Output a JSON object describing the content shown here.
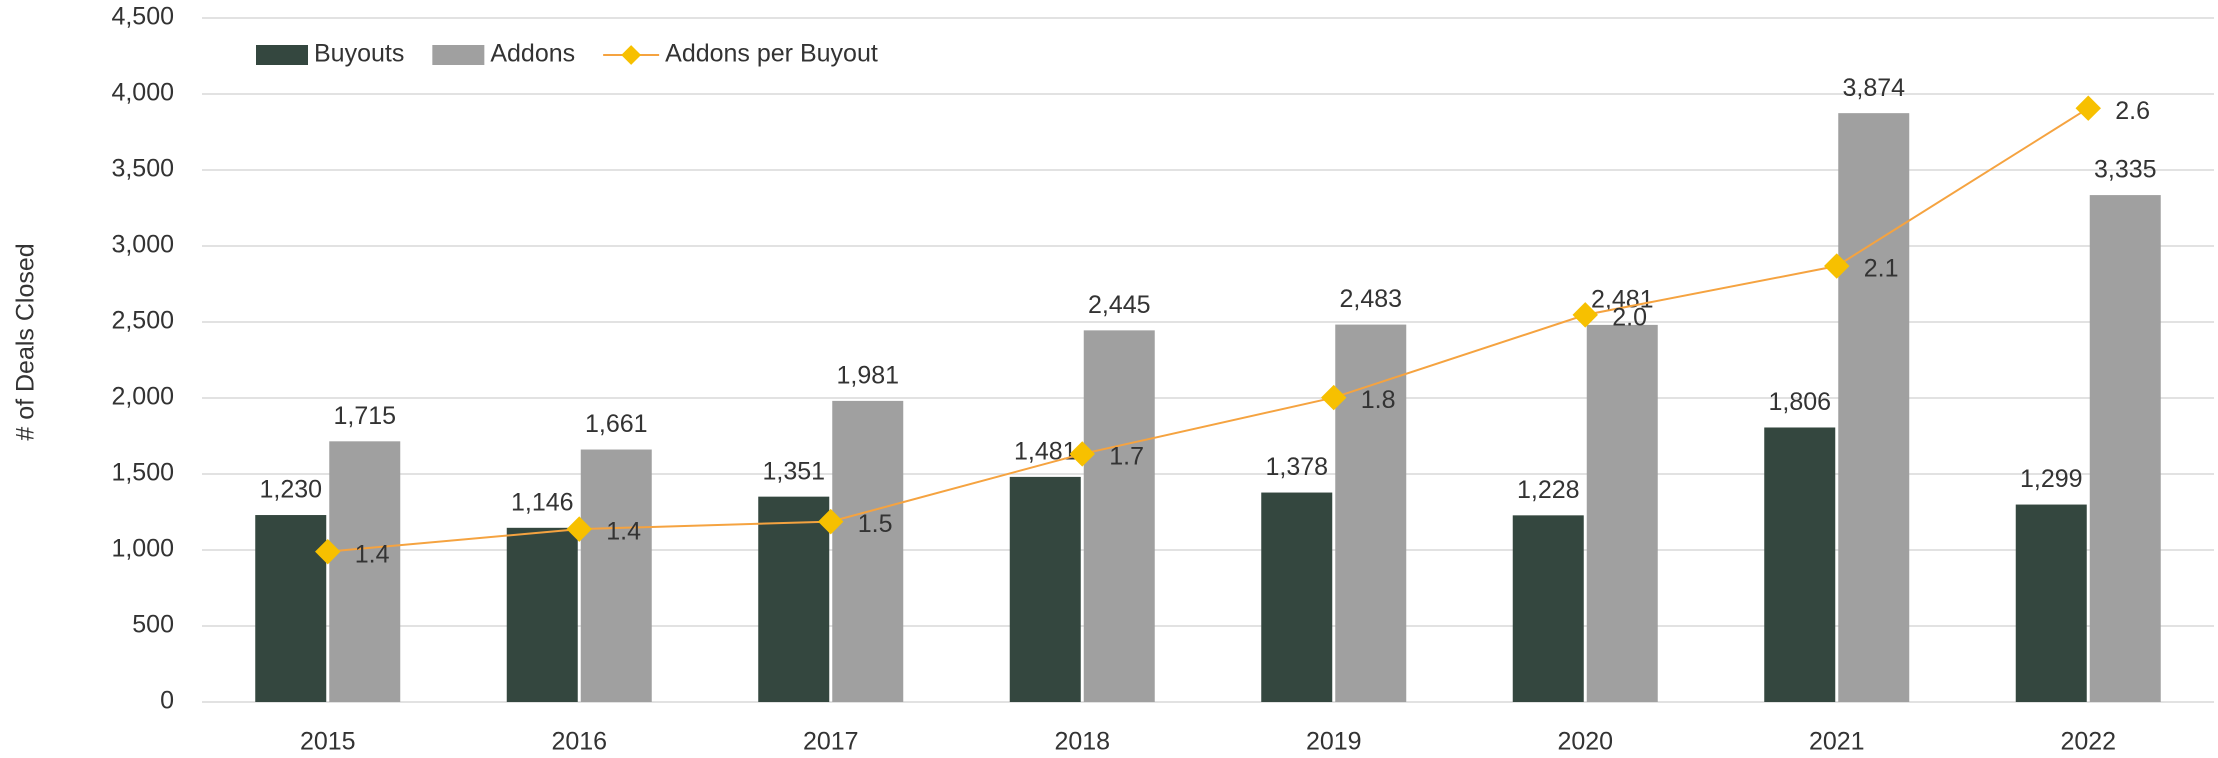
{
  "chart_data": {
    "type": "bar-line",
    "y_label": "# of Deals Closed",
    "categories": [
      "2015",
      "2016",
      "2017",
      "2018",
      "2019",
      "2020",
      "2021",
      "2022"
    ],
    "series": [
      {
        "name": "Buyouts",
        "type": "bar",
        "color": "#34473f",
        "values": [
          1230,
          1146,
          1351,
          1481,
          1378,
          1228,
          1806,
          1299
        ],
        "value_labels": [
          "1,230",
          "1,146",
          "1,351",
          "1,481",
          "1,378",
          "1,228",
          "1,806",
          "1,299"
        ]
      },
      {
        "name": "Addons",
        "type": "bar",
        "color": "#a0a0a0",
        "values": [
          1715,
          1661,
          1981,
          2445,
          2483,
          2481,
          3874,
          3335
        ],
        "value_labels": [
          "1,715",
          "1,661",
          "1,981",
          "2,445",
          "2,483",
          "2,481",
          "3,874",
          "3,335"
        ]
      },
      {
        "name": "Addons per Buyout",
        "type": "line",
        "axis": "y2",
        "color": "#f5a340",
        "marker_color": "#f7c000",
        "values": [
          1.39,
          1.45,
          1.47,
          1.65,
          1.8,
          2.02,
          2.15,
          2.57
        ],
        "value_labels": [
          "1.4",
          "1.4",
          "1.5",
          "1.7",
          "1.8",
          "2.0",
          "2.1",
          "2.6"
        ]
      }
    ],
    "ylim": [
      0,
      4500
    ],
    "yticks": [
      0,
      500,
      {
        "value": 1000,
        "label": "1,000"
      },
      {
        "value": 1500,
        "label": "1,500"
      },
      {
        "value": 2000,
        "label": "2,000"
      },
      {
        "value": 2500,
        "label": "2,500"
      },
      {
        "value": 3000,
        "label": "3,000"
      },
      {
        "value": 3500,
        "label": "3,500"
      },
      {
        "value": 4000,
        "label": "4,000"
      },
      {
        "value": 4500,
        "label": "4,500"
      }
    ],
    "y2lim": [
      0.99,
      2.81
    ],
    "grid": true,
    "legend": "top-left"
  }
}
